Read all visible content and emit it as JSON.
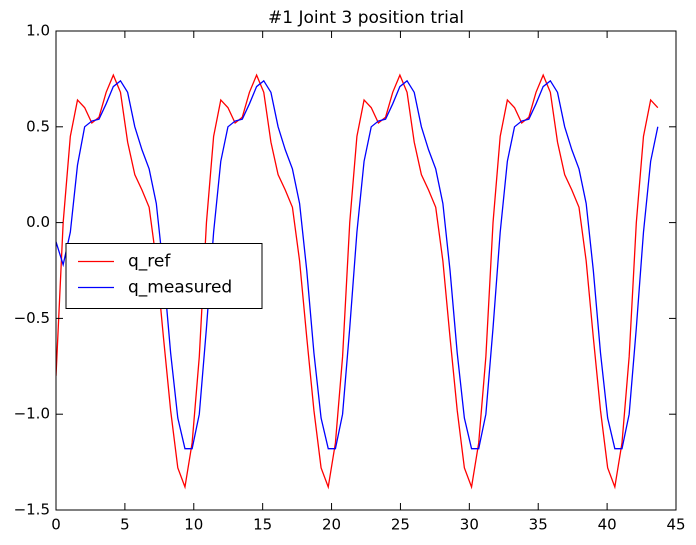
{
  "chart_data": {
    "type": "line",
    "title": "#1 Joint 3 position trial",
    "x": [
      0,
      0.52,
      1.04,
      1.56,
      2.08,
      2.6,
      3.12,
      3.64,
      4.16,
      4.68,
      5.2,
      5.72,
      6.24,
      6.76,
      7.28,
      7.8,
      8.32,
      8.84,
      9.36,
      9.88,
      10.4,
      10.92,
      11.44,
      11.96,
      12.48,
      13,
      13.52,
      14.04,
      14.56,
      15.08,
      15.6,
      16.12,
      16.64,
      17.16,
      17.68,
      18.2,
      18.72,
      19.24,
      19.76,
      20.28,
      20.8,
      21.32,
      21.84,
      22.36,
      22.88,
      23.4,
      23.92,
      24.44,
      24.96,
      25.48,
      26,
      26.52,
      27.04,
      27.56,
      28.08,
      28.6,
      29.12,
      29.64,
      30.16,
      30.68,
      31.2,
      31.72,
      32.24,
      32.76,
      33.28,
      33.8,
      34.32,
      34.84,
      35.36,
      35.88,
      36.4,
      36.92,
      37.44,
      37.96,
      38.48,
      39,
      39.52,
      40.04,
      40.56,
      41.08,
      41.6,
      42.12,
      42.64,
      43.16,
      43.68
    ],
    "series": [
      {
        "name": "q_ref",
        "color": "#ff0000",
        "values": [
          -0.8,
          0.0,
          0.45,
          0.64,
          0.6,
          0.52,
          0.55,
          0.68,
          0.77,
          0.68,
          0.42,
          0.25,
          0.17,
          0.08,
          -0.2,
          -0.6,
          -0.98,
          -1.28,
          -1.38,
          -1.15,
          -0.7,
          0.0,
          0.45,
          0.64,
          0.6,
          0.52,
          0.55,
          0.68,
          0.77,
          0.68,
          0.42,
          0.25,
          0.17,
          0.08,
          -0.2,
          -0.6,
          -0.98,
          -1.28,
          -1.38,
          -1.15,
          -0.7,
          0.0,
          0.45,
          0.64,
          0.6,
          0.52,
          0.55,
          0.68,
          0.77,
          0.68,
          0.42,
          0.25,
          0.17,
          0.08,
          -0.2,
          -0.6,
          -0.98,
          -1.28,
          -1.38,
          -1.15,
          -0.7,
          0.0,
          0.45,
          0.64,
          0.6,
          0.52,
          0.55,
          0.68,
          0.77,
          0.68,
          0.42,
          0.25,
          0.17,
          0.08,
          -0.2,
          -0.6,
          -0.98,
          -1.28,
          -1.38,
          -1.15,
          -0.7,
          0.0,
          0.45,
          0.64,
          0.6
        ]
      },
      {
        "name": "q_measured",
        "color": "#0000ff",
        "values": [
          -0.1,
          -0.22,
          -0.05,
          0.3,
          0.5,
          0.53,
          0.54,
          0.62,
          0.71,
          0.74,
          0.68,
          0.5,
          0.38,
          0.28,
          0.1,
          -0.25,
          -0.68,
          -1.02,
          -1.18,
          -1.18,
          -1.0,
          -0.55,
          -0.05,
          0.32,
          0.5,
          0.53,
          0.54,
          0.62,
          0.71,
          0.74,
          0.68,
          0.5,
          0.38,
          0.28,
          0.1,
          -0.25,
          -0.68,
          -1.02,
          -1.18,
          -1.18,
          -1.0,
          -0.55,
          -0.05,
          0.32,
          0.5,
          0.53,
          0.54,
          0.62,
          0.71,
          0.74,
          0.68,
          0.5,
          0.38,
          0.28,
          0.1,
          -0.25,
          -0.68,
          -1.02,
          -1.18,
          -1.18,
          -1.0,
          -0.55,
          -0.05,
          0.32,
          0.5,
          0.53,
          0.54,
          0.62,
          0.71,
          0.74,
          0.68,
          0.5,
          0.38,
          0.28,
          0.1,
          -0.25,
          -0.68,
          -1.02,
          -1.18,
          -1.18,
          -1.0,
          -0.55,
          -0.05,
          0.32,
          0.5
        ]
      }
    ],
    "xlim": [
      0,
      45
    ],
    "xticks": [
      0,
      5,
      10,
      15,
      20,
      25,
      30,
      35,
      40,
      45
    ],
    "ylim": [
      -1.5,
      1.0
    ],
    "yticks": [
      {
        "value": -1.5,
        "label": "−1.5"
      },
      {
        "value": -1.0,
        "label": "−1.0"
      },
      {
        "value": -0.5,
        "label": "−0.5"
      },
      {
        "value": 0.0,
        "label": "0.0"
      },
      {
        "value": 0.5,
        "label": "0.5"
      },
      {
        "value": 1.0,
        "label": "1.0"
      }
    ],
    "legend": "center left"
  }
}
